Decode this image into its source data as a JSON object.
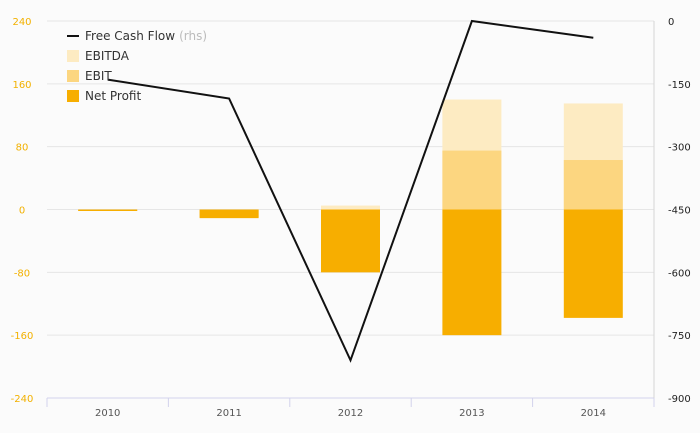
{
  "chart_data": {
    "type": "bar",
    "categories": [
      "2010",
      "2011",
      "2012",
      "2013",
      "2014"
    ],
    "series": [
      {
        "name": "EBITDA",
        "axis": "left",
        "values": [
          0,
          -10,
          5,
          140,
          135
        ],
        "color": "#fdebc2"
      },
      {
        "name": "EBIT",
        "axis": "left",
        "values": [
          -1,
          -10,
          -2,
          75,
          63
        ],
        "color": "#fcd680"
      },
      {
        "name": "Net Profit",
        "axis": "left",
        "values": [
          -1,
          -11,
          -80,
          -160,
          -138
        ],
        "color": "#f7ae00"
      },
      {
        "name": "Free Cash Flow",
        "axis": "right",
        "type": "line",
        "values": [
          -140,
          -185,
          -810,
          0,
          -40
        ],
        "color": "#111111"
      }
    ],
    "legend": {
      "position": "top-left",
      "entries": [
        {
          "label": "Free Cash Flow",
          "suffix": "(rhs)",
          "series": "Free Cash Flow"
        },
        {
          "label": "EBITDA",
          "suffix": "",
          "series": "EBITDA"
        },
        {
          "label": "EBIT",
          "suffix": "",
          "series": "EBIT"
        },
        {
          "label": "Net Profit",
          "suffix": "",
          "series": "Net Profit"
        }
      ]
    },
    "y_left": {
      "ticks": [
        "240",
        "160",
        "80",
        "0",
        "-80",
        "-160",
        "-240"
      ],
      "min": -240,
      "max": 240
    },
    "y_right": {
      "ticks": [
        "0",
        "-150",
        "-300",
        "-450",
        "-600",
        "-750",
        "-900"
      ],
      "min": -900,
      "max": 0
    },
    "grid": true,
    "colors": {
      "left_axis": "#f2b100",
      "right_axis": "#222222",
      "grid": "#e6e6e6",
      "baseline": "#d3d3ec"
    }
  }
}
